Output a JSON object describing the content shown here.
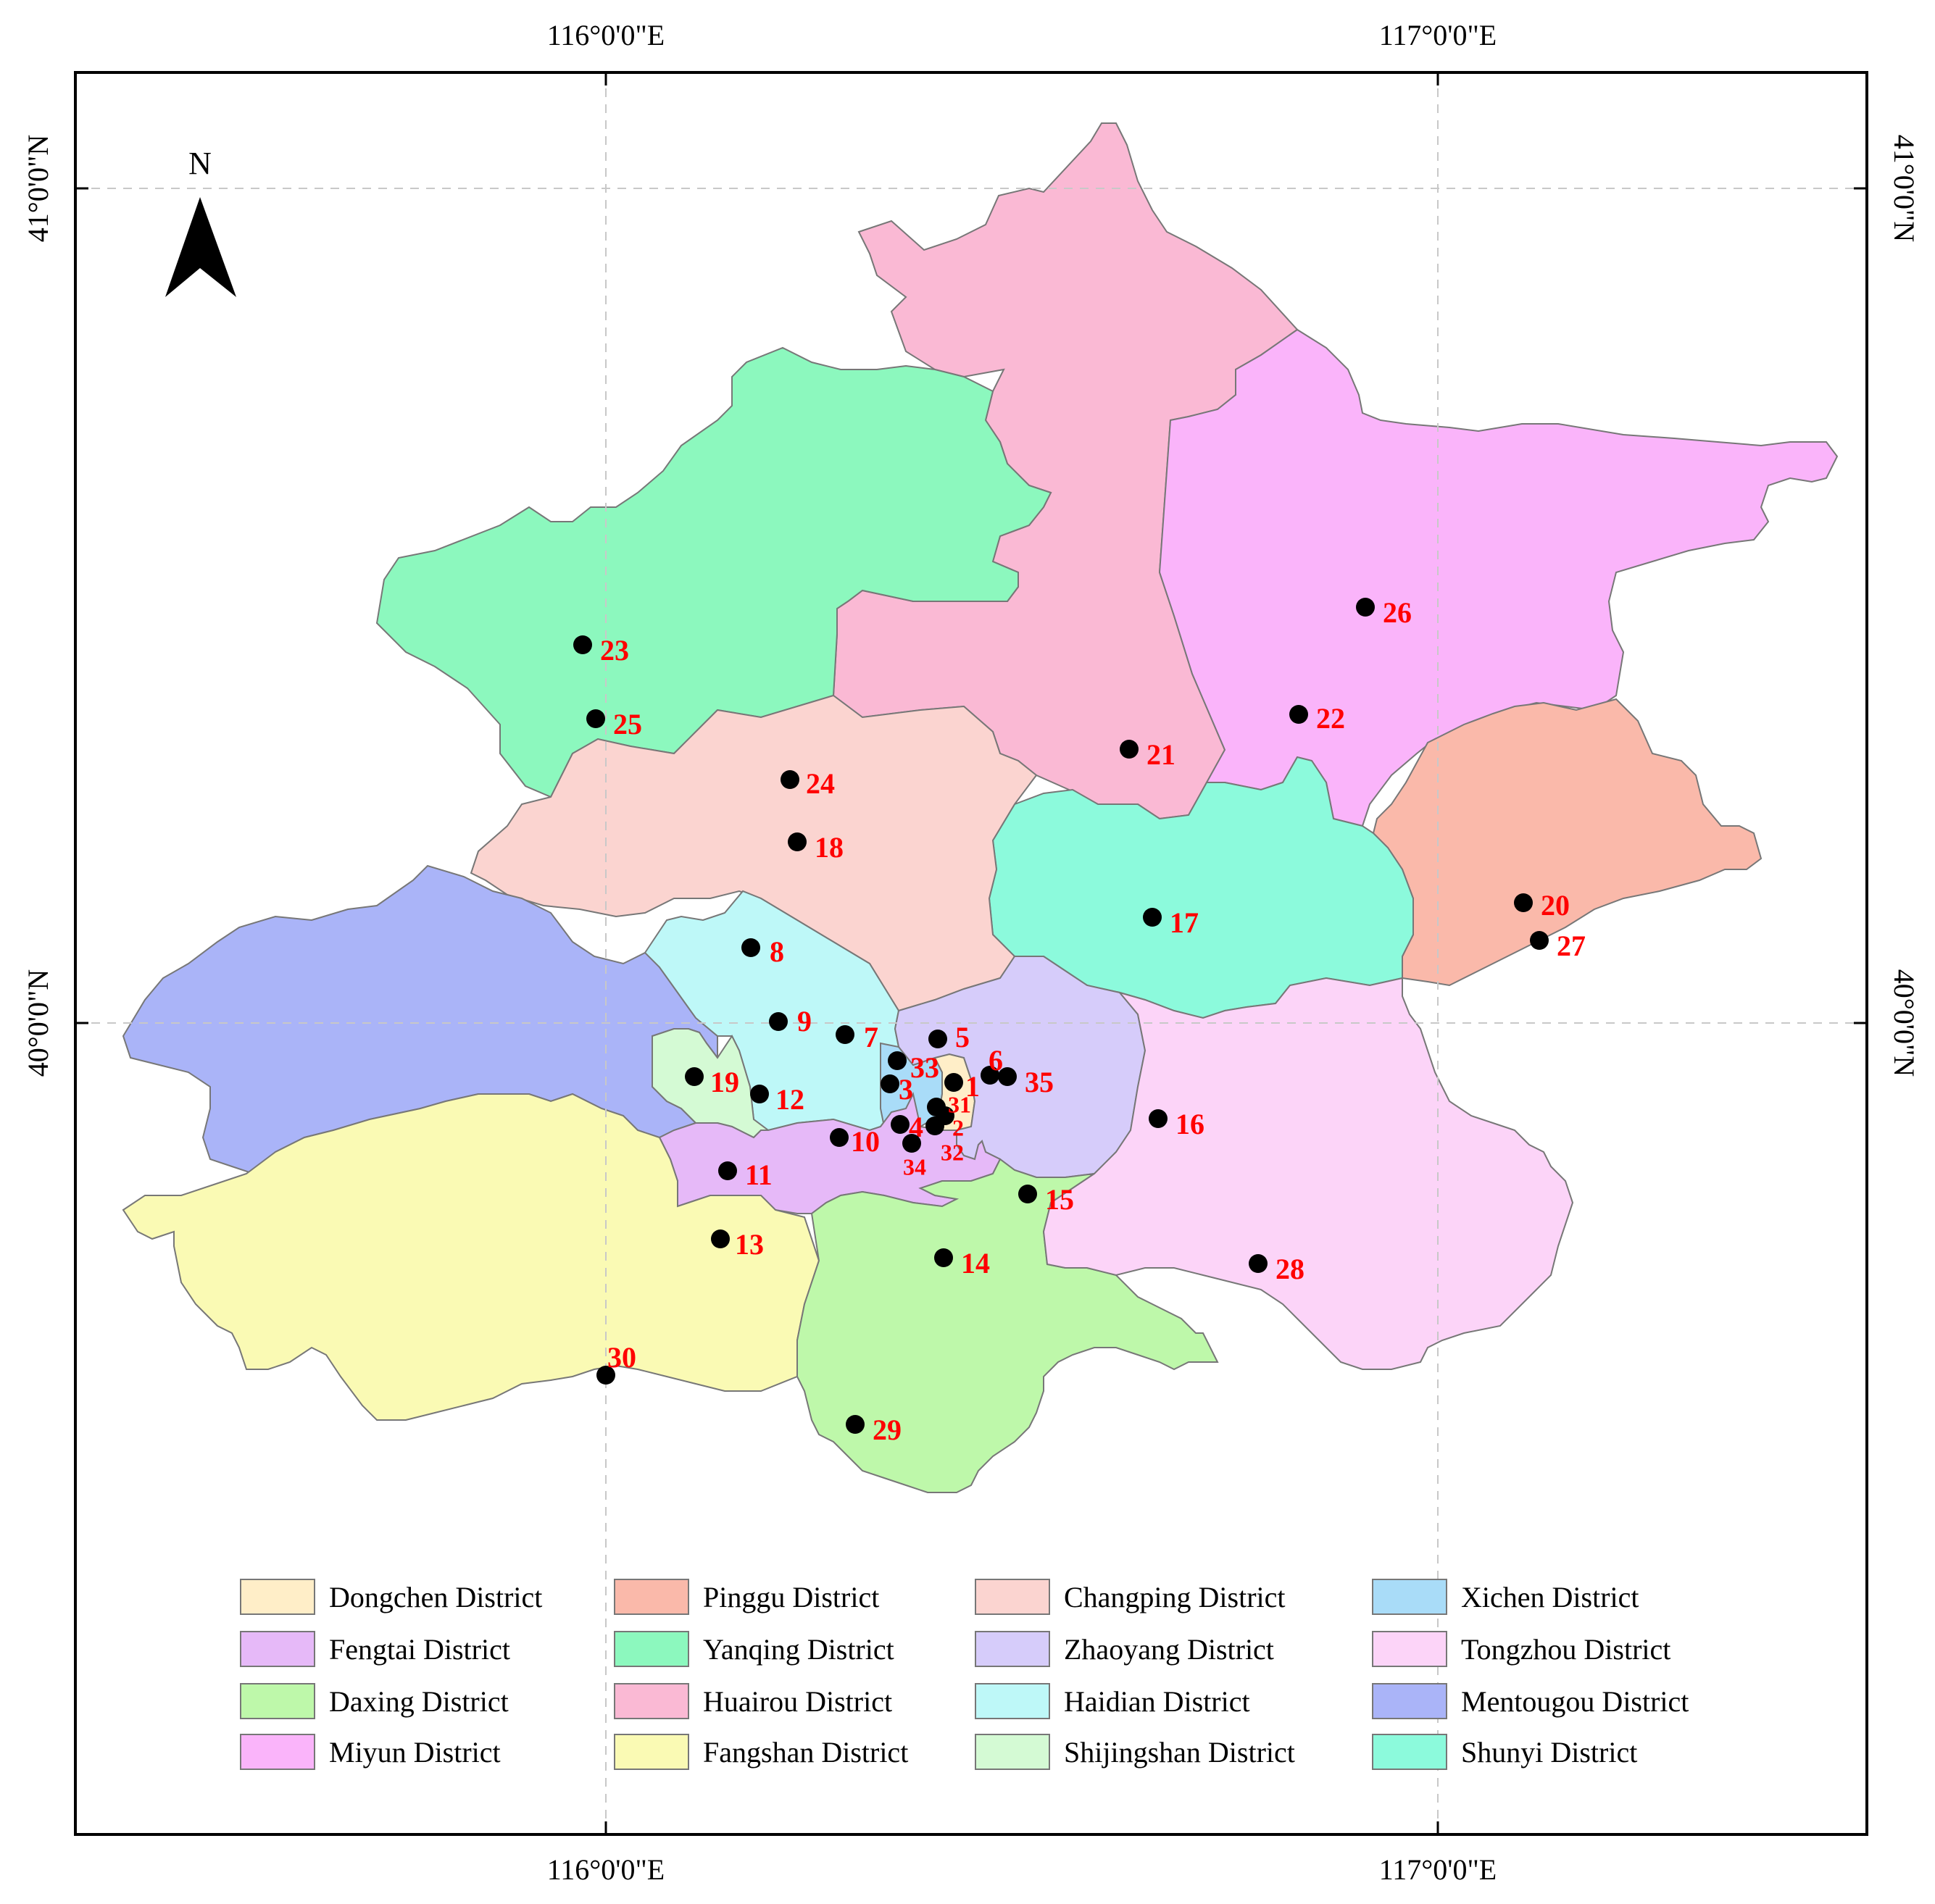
{
  "coordinates": {
    "top": [
      "116°0'0\"E",
      "117°0'0\"E"
    ],
    "bottom": [
      "116°0'0\"E",
      "117°0'0\"E"
    ],
    "left": [
      "41°0'0\"N",
      "40°0'0\"N"
    ],
    "right": [
      "41°0'0\"N",
      "40°0'0\"N"
    ]
  },
  "north_arrow": {
    "label": "N"
  },
  "districts": [
    {
      "id": "dongchen",
      "name": "Dongchen District",
      "color": "#FFEEC8"
    },
    {
      "id": "pinggu",
      "name": "Pinggu District",
      "color": "#FAB9AA"
    },
    {
      "id": "changping",
      "name": "Changping District",
      "color": "#FBD4D0"
    },
    {
      "id": "xichen",
      "name": "Xichen District",
      "color": "#A9DCF8"
    },
    {
      "id": "fengtai",
      "name": "Fengtai District",
      "color": "#E6B9F8"
    },
    {
      "id": "yanqing",
      "name": "Yanqing District",
      "color": "#8CF8BE"
    },
    {
      "id": "zhaoyang",
      "name": "Zhaoyang District",
      "color": "#D6CCFA"
    },
    {
      "id": "tongzhou",
      "name": "Tongzhou District",
      "color": "#FCD4F8"
    },
    {
      "id": "daxing",
      "name": "Daxing District",
      "color": "#BEF8AA"
    },
    {
      "id": "huairou",
      "name": "Huairou District",
      "color": "#FAB9D4"
    },
    {
      "id": "haidian",
      "name": "Haidian District",
      "color": "#BEF8F8"
    },
    {
      "id": "mentougou",
      "name": "Mentougou District",
      "color": "#AAB4F8"
    },
    {
      "id": "miyun",
      "name": "Miyun District",
      "color": "#FAB4FA"
    },
    {
      "id": "fangshan",
      "name": "Fangshan District",
      "color": "#FAFAB4"
    },
    {
      "id": "shijingshan",
      "name": "Shijingshan District",
      "color": "#D4FAD4"
    },
    {
      "id": "shunyi",
      "name": "Shunyi District",
      "color": "#8CFADC"
    }
  ],
  "sites": [
    {
      "label": "1"
    },
    {
      "label": "2"
    },
    {
      "label": "3"
    },
    {
      "label": "4"
    },
    {
      "label": "5"
    },
    {
      "label": "6"
    },
    {
      "label": "7"
    },
    {
      "label": "8"
    },
    {
      "label": "9"
    },
    {
      "label": "10"
    },
    {
      "label": "11"
    },
    {
      "label": "12"
    },
    {
      "label": "13"
    },
    {
      "label": "14"
    },
    {
      "label": "15"
    },
    {
      "label": "16"
    },
    {
      "label": "17"
    },
    {
      "label": "18"
    },
    {
      "label": "19"
    },
    {
      "label": "20"
    },
    {
      "label": "21"
    },
    {
      "label": "22"
    },
    {
      "label": "23"
    },
    {
      "label": "24"
    },
    {
      "label": "25"
    },
    {
      "label": "26"
    },
    {
      "label": "27"
    },
    {
      "label": "28"
    },
    {
      "label": "29"
    },
    {
      "label": "30"
    },
    {
      "label": "31"
    },
    {
      "label": "32"
    },
    {
      "label": "33"
    },
    {
      "label": "34"
    },
    {
      "label": "35"
    }
  ]
}
